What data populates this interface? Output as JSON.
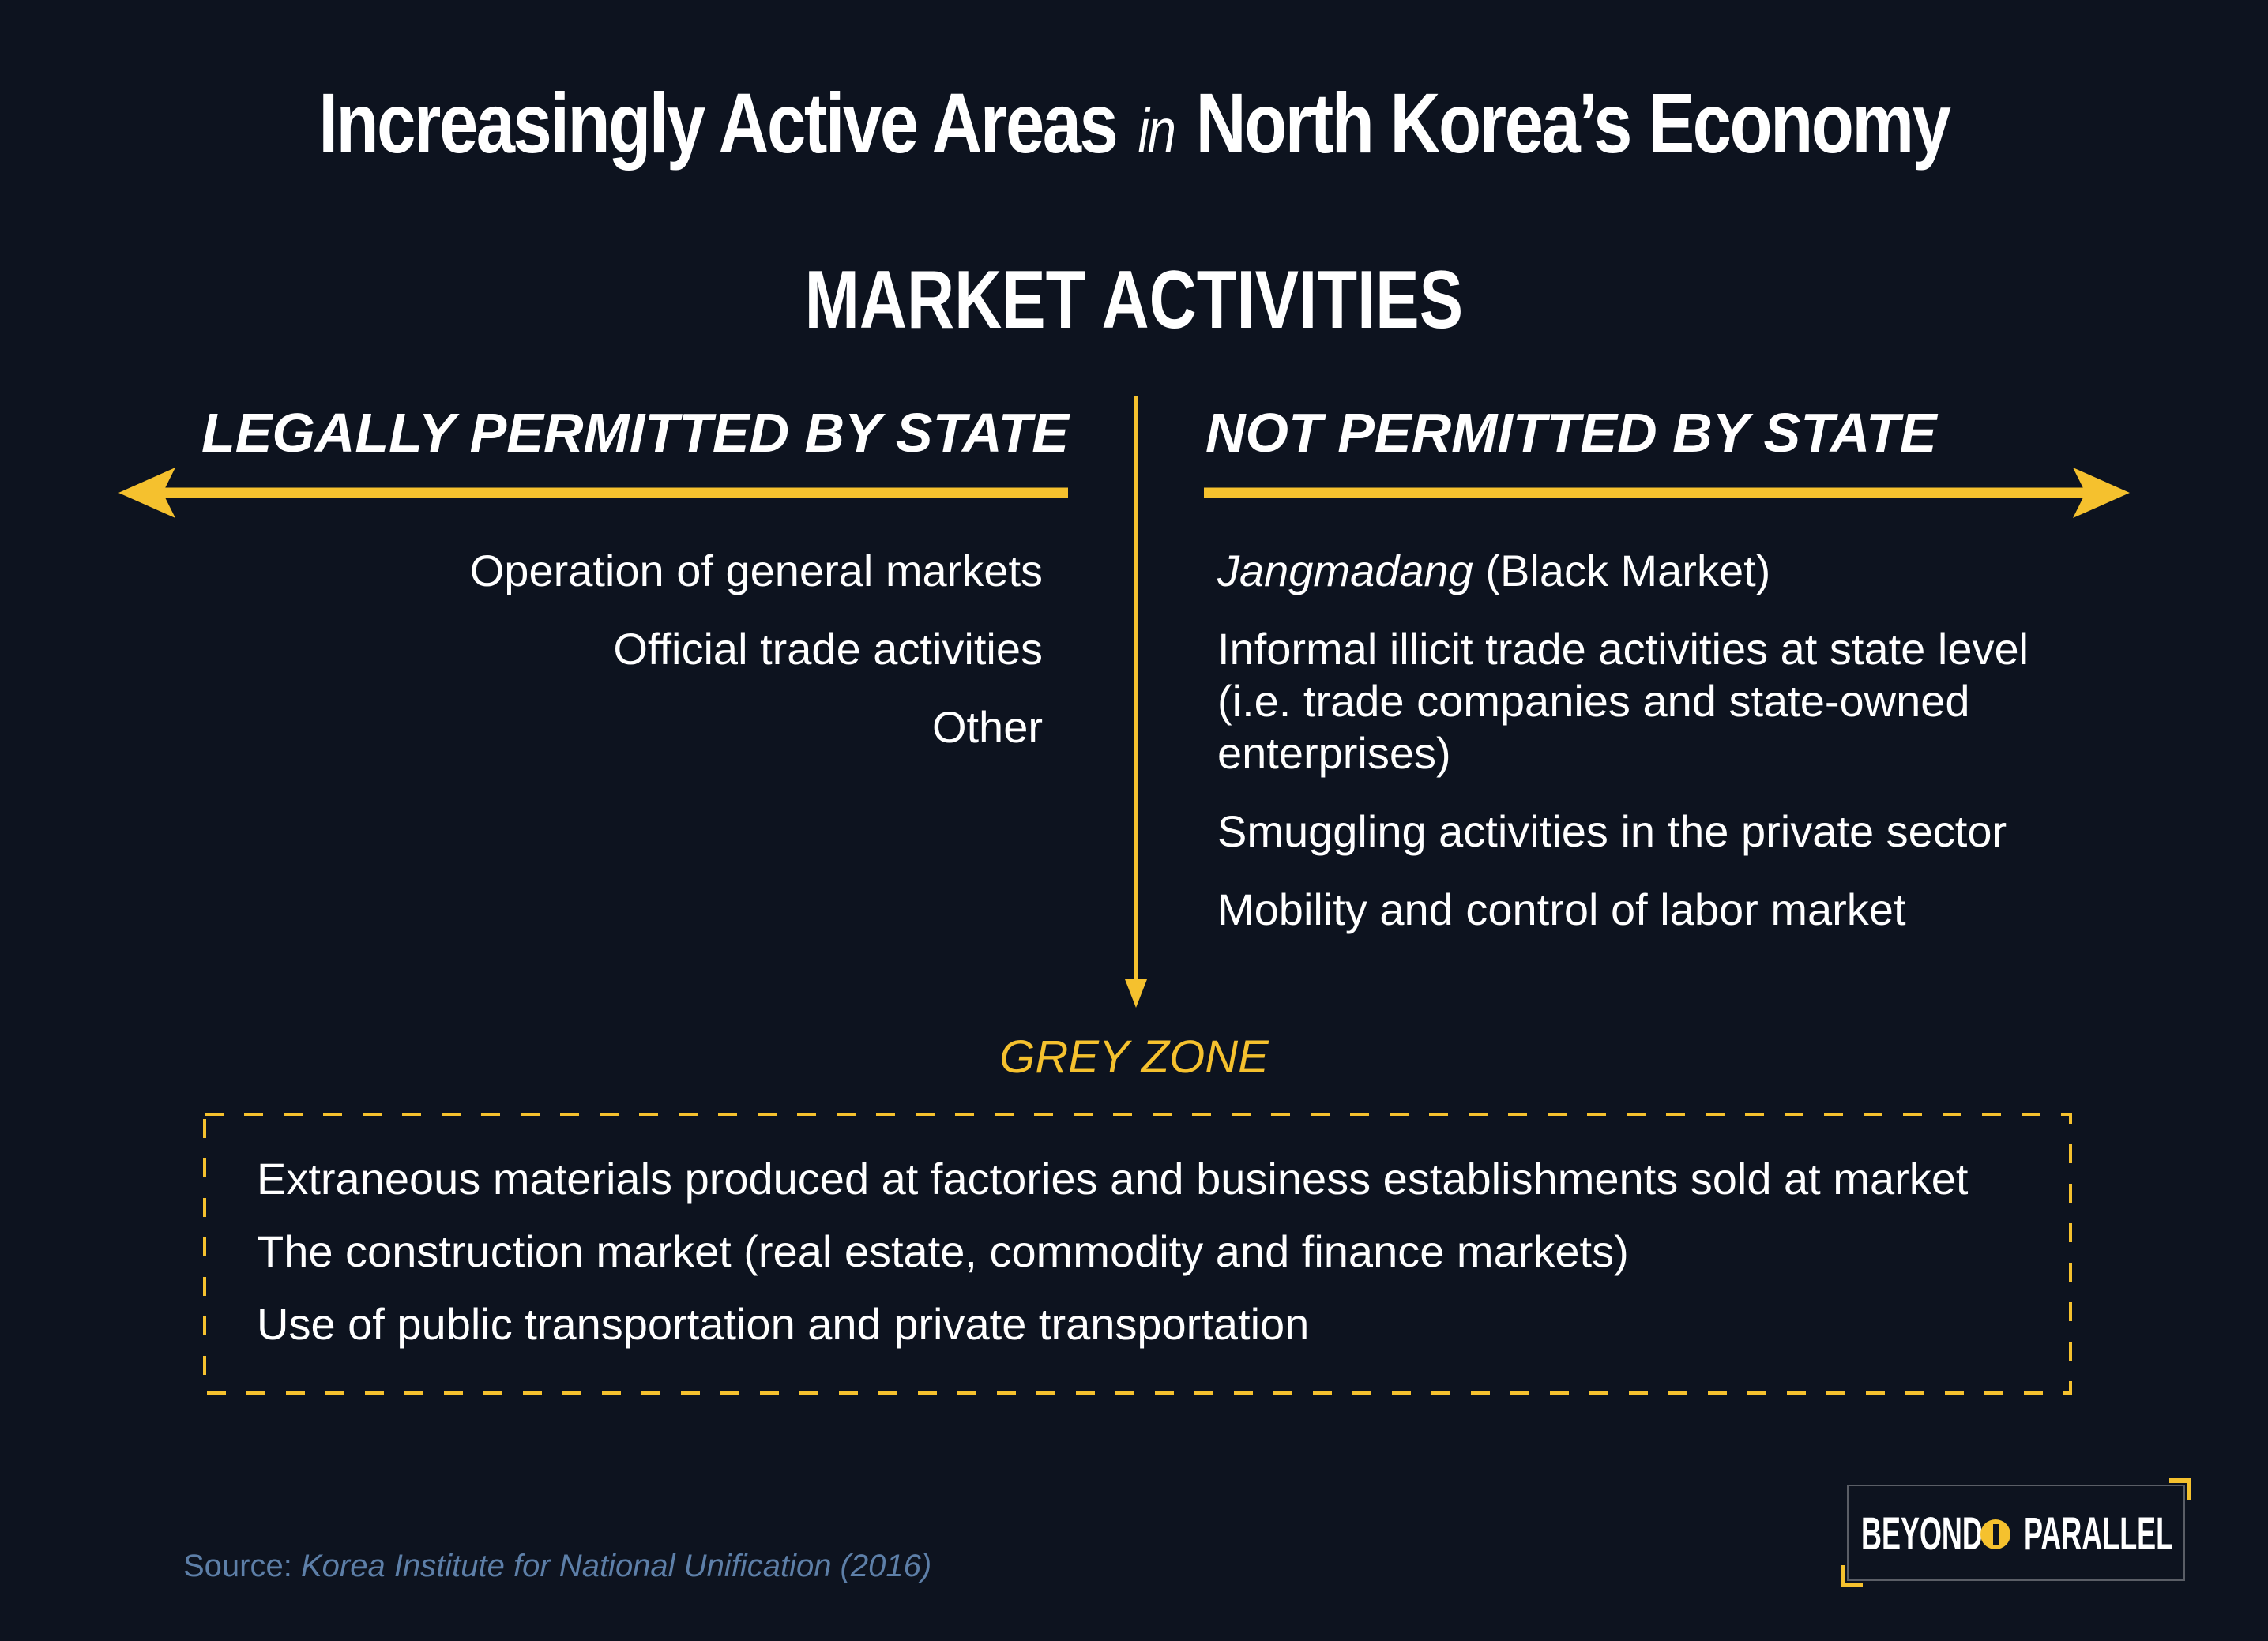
{
  "title": {
    "part1": "Increasingly Active Areas",
    "in": "in",
    "part2": "North Korea’s Economy"
  },
  "subtitle": "MARKET ACTIVITIES",
  "left": {
    "heading": "LEGALLY PERMITTED BY STATE",
    "items": [
      "Operation of general markets",
      "Official trade activities",
      "Other"
    ]
  },
  "right": {
    "heading": "NOT PERMITTED BY STATE",
    "items": [
      {
        "em": "Jangmadang",
        "text": " (Black Market)"
      },
      {
        "em": "",
        "text": "Informal illicit trade activities at state level (i.e. trade companies and state-owned enterprises)"
      },
      {
        "em": "",
        "text": "Smuggling activities in the private sector"
      },
      {
        "em": "",
        "text": "Mobility and control of labor market"
      }
    ]
  },
  "grey_zone": {
    "label": "GREY ZONE",
    "items": [
      "Extraneous materials produced at factories and business establishments sold at market",
      "The construction market (real estate, commodity and finance markets)",
      "Use of public transportation and private transportation"
    ]
  },
  "source": {
    "prefix": "Source: ",
    "text": "Korea Institute for National Unification (2016)"
  },
  "logo": {
    "word1": "BEYOND",
    "word2": "PARALLEL"
  },
  "colors": {
    "background": "#0d131f",
    "accent": "#f5c12e",
    "text": "#ffffff",
    "source": "#5d7fa8"
  }
}
